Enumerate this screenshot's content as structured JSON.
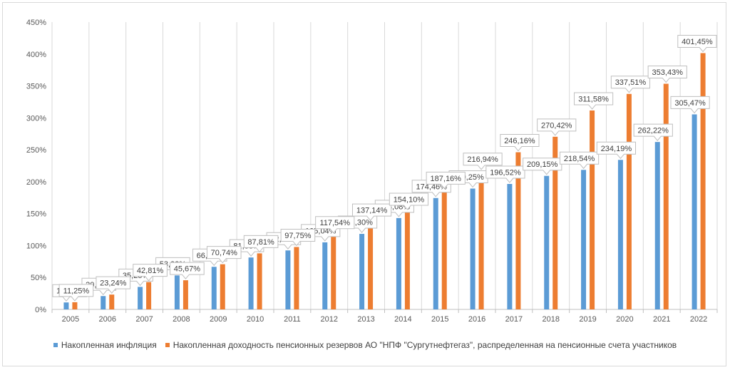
{
  "chart_data": {
    "type": "bar",
    "categories": [
      "2005",
      "2006",
      "2007",
      "2008",
      "2009",
      "2010",
      "2011",
      "2012",
      "2013",
      "2014",
      "2015",
      "2016",
      "2017",
      "2018",
      "2019",
      "2020",
      "2021",
      "2022"
    ],
    "series": [
      {
        "name": "Накопленная инфляция",
        "color": "#5b9bd5",
        "values": [
          10.92,
          20.9,
          35.25,
          53.22,
          66.7,
          81.33,
          92.4,
          105.04,
          118.3,
          143.08,
          174.46,
          189.25,
          196.52,
          209.15,
          218.54,
          234.19,
          262.22,
          305.47
        ],
        "labels": [
          "10,92%",
          "20,90%",
          "35,25%",
          "53,22%",
          "66,70%",
          "81,33%",
          "92,40%",
          "105,04%",
          "118,30%",
          "143,08%",
          "174,46%",
          "189,25%",
          "196,52%",
          "209,15%",
          "218,54%",
          "234,19%",
          "262,22%",
          "305,47%"
        ]
      },
      {
        "name": "Накопленная доходность пенсионных резервов АО \"НПФ \"Сургутнефтегаз\", распределенная на пенсионные счета участников",
        "color": "#ed7d31",
        "values": [
          11.25,
          23.24,
          42.81,
          45.67,
          70.74,
          87.81,
          97.75,
          117.54,
          137.14,
          154.1,
          187.16,
          216.94,
          246.16,
          270.42,
          311.58,
          337.51,
          353.43,
          401.45
        ],
        "labels": [
          "11,25%",
          "23,24%",
          "42,81%",
          "45,67%",
          "70,74%",
          "87,81%",
          "97,75%",
          "117,54%",
          "137,14%",
          "154,10%",
          "187,16%",
          "216,94%",
          "246,16%",
          "270,42%",
          "311,58%",
          "337,51%",
          "353,43%",
          "401,45%"
        ]
      }
    ],
    "yticks": [
      "0%",
      "50%",
      "100%",
      "150%",
      "200%",
      "250%",
      "300%",
      "350%",
      "400%",
      "450%"
    ],
    "ylim": [
      0,
      450
    ],
    "grid": "vertical",
    "legend_position": "bottom"
  }
}
